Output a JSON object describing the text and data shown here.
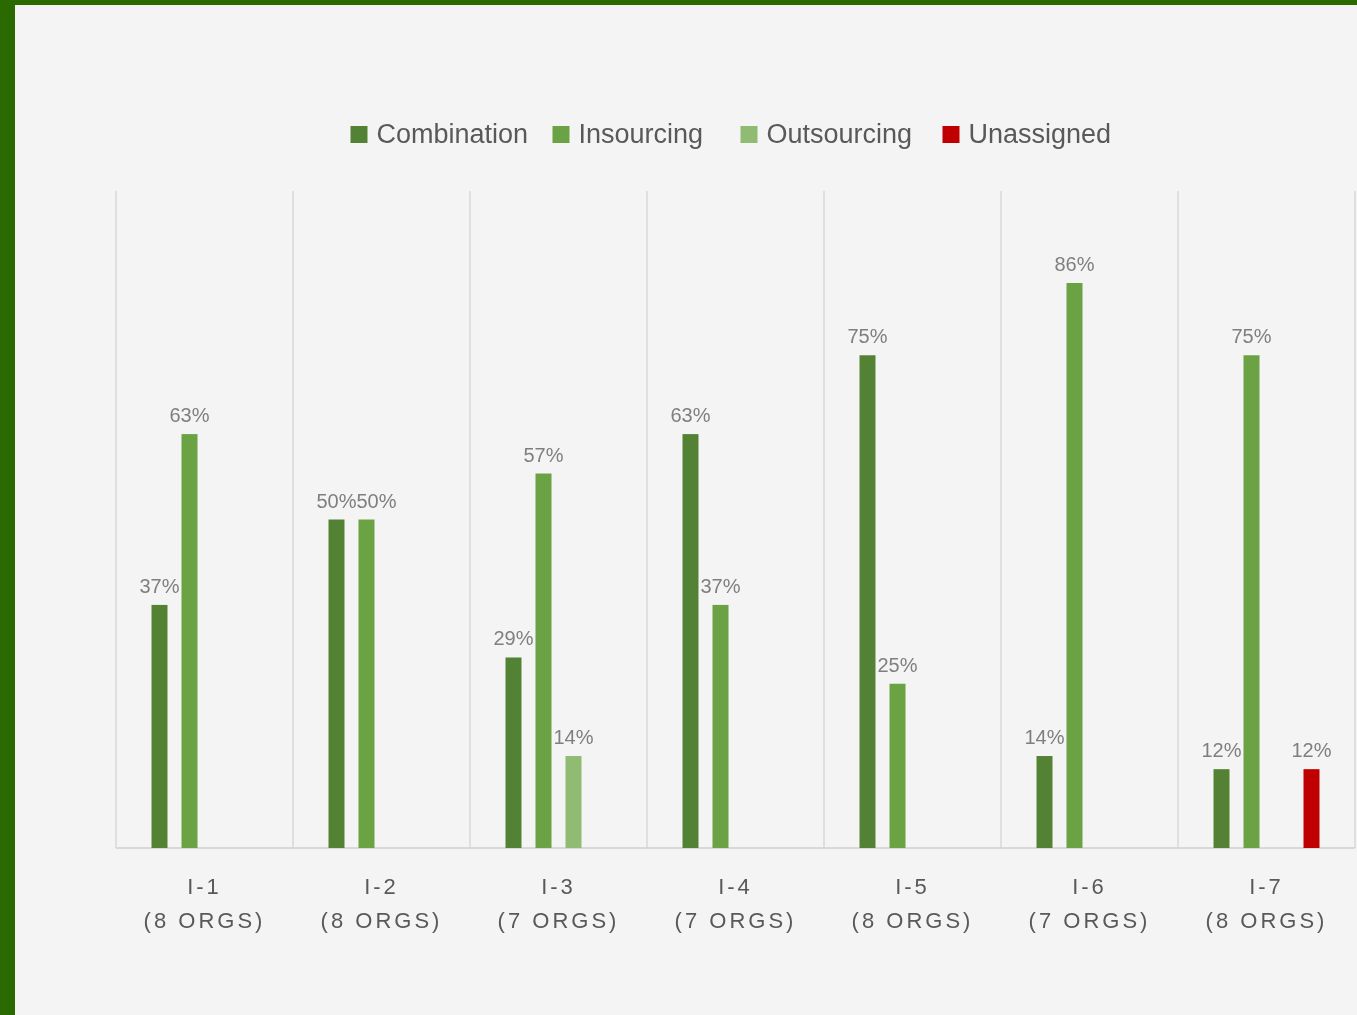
{
  "chart_data": {
    "type": "bar",
    "categories": [
      "I-1\n(8 ORGS)",
      "I-2\n(8 ORGS)",
      "I-3\n(7 ORGS)",
      "I-4\n(7 ORGS)",
      "I-5\n(8 ORGS)",
      "I-6\n(7 ORGS)",
      "I-7\n(8 ORGS)"
    ],
    "series": [
      {
        "name": "Combination",
        "color": "#548235",
        "values": [
          37,
          50,
          29,
          63,
          75,
          14,
          12
        ],
        "value_labels": [
          "37%",
          "50%",
          "29%",
          "63%",
          "75%",
          "14%",
          "12%"
        ]
      },
      {
        "name": "Insourcing",
        "color": "#6aa244",
        "values": [
          63,
          50,
          57,
          37,
          25,
          86,
          75
        ],
        "value_labels": [
          "63%",
          "50%",
          "57%",
          "37%",
          "25%",
          "86%",
          "75%"
        ]
      },
      {
        "name": "Outsourcing",
        "color": "#8fbc72",
        "values": [
          null,
          null,
          14,
          null,
          null,
          null,
          null
        ],
        "value_labels": [
          null,
          null,
          "14%",
          null,
          null,
          null,
          null
        ]
      },
      {
        "name": "Unassigned",
        "color": "#c00000",
        "values": [
          null,
          null,
          null,
          null,
          null,
          null,
          12
        ],
        "value_labels": [
          null,
          null,
          null,
          null,
          null,
          null,
          "12%"
        ]
      }
    ],
    "tick_labels": "x",
    "grid": "x",
    "legend": "top"
  }
}
